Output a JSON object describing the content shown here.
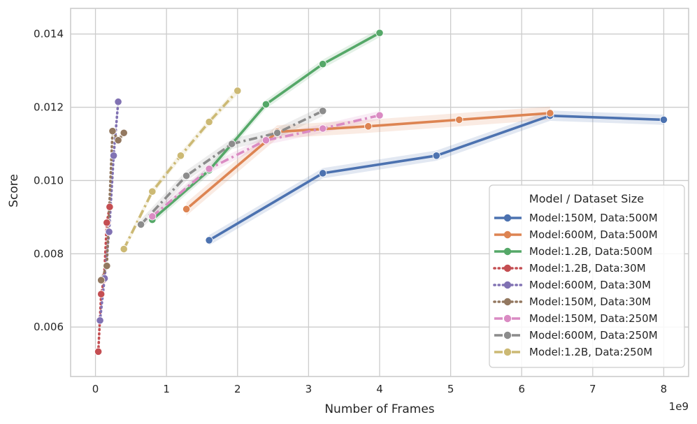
{
  "chart_data": {
    "type": "line",
    "title": "",
    "xlabel": "Number of Frames",
    "ylabel": "Score",
    "x_offset_text": "1e9",
    "xlim": [
      -0.35,
      8.35
    ],
    "ylim": [
      0.00465,
      0.0147
    ],
    "x_ticks": [
      0,
      1,
      2,
      3,
      4,
      5,
      6,
      7,
      8
    ],
    "x_tick_labels": [
      "0",
      "1",
      "2",
      "3",
      "4",
      "5",
      "6",
      "7",
      "8"
    ],
    "y_ticks": [
      0.006,
      0.008,
      0.01,
      0.012,
      0.014
    ],
    "y_tick_labels": [
      "0.006",
      "0.008",
      "0.010",
      "0.012",
      "0.014"
    ],
    "grid": true,
    "legend": {
      "title": "Model / Dataset Size",
      "placement": "lower-right"
    },
    "series": [
      {
        "name": "Model:150M, Data:500M",
        "color": "#4c72b0",
        "dash": "solid",
        "x": [
          1.6,
          3.2,
          4.8,
          6.4,
          8.0
        ],
        "y": [
          0.00837,
          0.0102,
          0.01068,
          0.01177,
          0.01166
        ],
        "band": 0.00014
      },
      {
        "name": "Model:600M, Data:500M",
        "color": "#dd8452",
        "dash": "solid",
        "x": [
          1.28,
          2.56,
          3.84,
          5.12,
          6.4
        ],
        "y": [
          0.00922,
          0.01133,
          0.01148,
          0.01166,
          0.01184
        ],
        "band": 0.00018
      },
      {
        "name": "Model:1.2B, Data:500M",
        "color": "#55a868",
        "dash": "solid",
        "x": [
          0.8,
          1.6,
          2.4,
          3.2,
          4.0
        ],
        "y": [
          0.00893,
          0.01028,
          0.01208,
          0.01318,
          0.01403
        ],
        "band": 0.00012
      },
      {
        "name": "Model:1.2B, Data:30M",
        "color": "#c44e52",
        "dash": "dotted",
        "x": [
          0.04,
          0.08,
          0.12,
          0.16,
          0.2
        ],
        "y": [
          0.00533,
          0.0069,
          0.0073,
          0.00885,
          0.00928
        ],
        "band": 0.0001
      },
      {
        "name": "Model:600M, Data:30M",
        "color": "#8172b3",
        "dash": "dotted",
        "x": [
          0.064,
          0.128,
          0.192,
          0.256,
          0.32
        ],
        "y": [
          0.00618,
          0.00733,
          0.0086,
          0.01068,
          0.01215
        ],
        "band": 0.0001
      },
      {
        "name": "Model:150M, Data:30M",
        "color": "#937860",
        "dash": "dotted",
        "x": [
          0.08,
          0.16,
          0.24,
          0.32,
          0.4
        ],
        "y": [
          0.00728,
          0.00767,
          0.01135,
          0.0111,
          0.0113
        ],
        "band": 0.0001
      },
      {
        "name": "Model:150M, Data:250M",
        "color": "#da8bc3",
        "dash": "dashdot",
        "x": [
          0.8,
          1.6,
          2.4,
          3.2,
          4.0
        ],
        "y": [
          0.00902,
          0.01032,
          0.0111,
          0.01142,
          0.01178
        ],
        "band": 0.00012
      },
      {
        "name": "Model:600M, Data:250M",
        "color": "#8c8c8c",
        "dash": "dashdot",
        "x": [
          0.64,
          1.28,
          1.92,
          2.56,
          3.2
        ],
        "y": [
          0.0088,
          0.01013,
          0.011,
          0.0113,
          0.0119
        ],
        "band": 0.00014
      },
      {
        "name": "Model:1.2B, Data:250M",
        "color": "#ccb974",
        "dash": "dashdot",
        "x": [
          0.4,
          0.8,
          1.2,
          1.6,
          2.0
        ],
        "y": [
          0.00813,
          0.0097,
          0.01068,
          0.0116,
          0.01245
        ],
        "band": 0.0001
      }
    ]
  }
}
